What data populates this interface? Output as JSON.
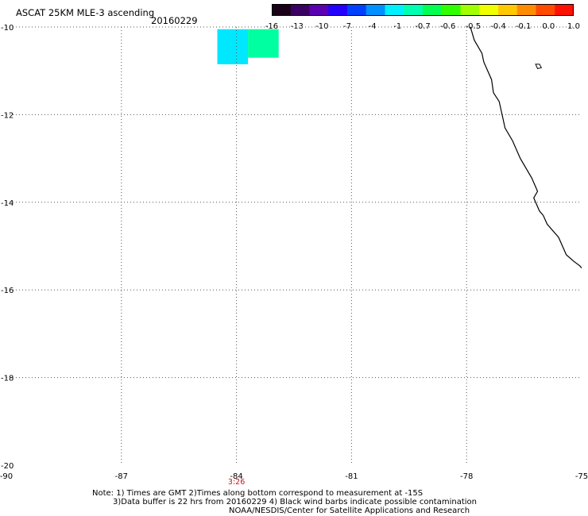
{
  "header": {
    "title": "ASCAT 25KM MLE-3 ascending",
    "date": "20160229"
  },
  "colorbar": {
    "colors": [
      "#1a0018",
      "#3a0062",
      "#5a00b0",
      "#2400ff",
      "#0040ff",
      "#0090ff",
      "#00f0ff",
      "#00ffb0",
      "#00ff50",
      "#30ff00",
      "#a0ff00",
      "#f0ff00",
      "#ffc800",
      "#ff8c00",
      "#ff4a00",
      "#ff1000"
    ],
    "labels": [
      "-16",
      "-13",
      "-10",
      "-7",
      "-4",
      "-1",
      "-0.7",
      "-0.6",
      "-0.5",
      "-0.4",
      "-0.1",
      "0.0",
      "1.0"
    ]
  },
  "map": {
    "lon_range": [
      -90,
      -75
    ],
    "lat_range": [
      -20,
      -10
    ],
    "x_ticks": [
      "-90",
      "-87",
      "-84",
      "-81",
      "-78",
      "-75"
    ],
    "x_tick_values": [
      -90,
      -87,
      -84,
      -81,
      -78,
      -75
    ],
    "y_ticks": [
      "-10",
      "-12",
      "-14",
      "-16",
      "-18",
      "-20"
    ],
    "y_tick_values": [
      -10,
      -12,
      -14,
      -16,
      -18,
      -20
    ],
    "time_label": "3:26",
    "time_label_lon": -84,
    "data_cells": [
      {
        "lon_min": -84.5,
        "lon_max": -83.7,
        "lat_top": -10.05,
        "lat_bottom": -10.85,
        "color": "#00e8ff"
      },
      {
        "lon_min": -83.7,
        "lon_max": -82.9,
        "lat_top": -10.05,
        "lat_bottom": -10.7,
        "color": "#00ffa0"
      }
    ],
    "coastline": [
      [
        -77.9,
        -10.0
      ],
      [
        -77.8,
        -10.3
      ],
      [
        -77.6,
        -10.6
      ],
      [
        -77.55,
        -10.8
      ],
      [
        -77.35,
        -11.2
      ],
      [
        -77.3,
        -11.5
      ],
      [
        -77.15,
        -11.7
      ],
      [
        -77.05,
        -12.1
      ],
      [
        -77.0,
        -12.3
      ],
      [
        -76.8,
        -12.6
      ],
      [
        -76.6,
        -13.0
      ],
      [
        -76.3,
        -13.45
      ],
      [
        -76.15,
        -13.75
      ],
      [
        -76.25,
        -13.9
      ],
      [
        -76.1,
        -14.2
      ],
      [
        -76.0,
        -14.3
      ],
      [
        -75.9,
        -14.5
      ],
      [
        -75.6,
        -14.8
      ],
      [
        -75.4,
        -15.2
      ],
      [
        -75.2,
        -15.35
      ],
      [
        -75.05,
        -15.45
      ],
      [
        -75.0,
        -15.5
      ]
    ],
    "island": [
      [
        -76.2,
        -10.85
      ],
      [
        -76.1,
        -10.85
      ],
      [
        -76.05,
        -10.93
      ],
      [
        -76.15,
        -10.95
      ]
    ]
  },
  "notes": {
    "line1": "Note: 1) Times are GMT 2)Times along bottom correspond to measurement at -15S",
    "line2": "3)Data buffer is 22 hrs from 20160229 4) Black wind barbs indicate possible contamination",
    "line3": "NOAA/NESDIS/Center for Satellite Applications and Research"
  }
}
